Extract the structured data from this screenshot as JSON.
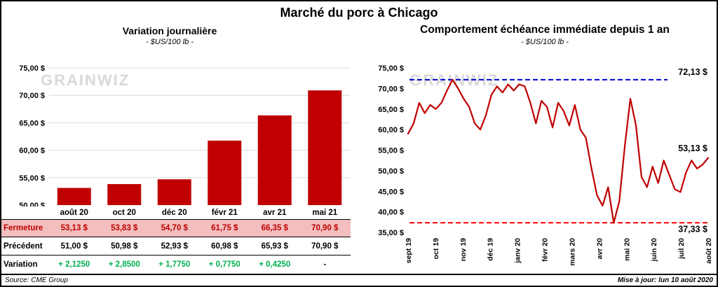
{
  "page_title": "Marché du porc à Chicago",
  "watermark": "GRAINWIZ",
  "footer": {
    "source": "Source: CME Group",
    "updated": "Mise à jour: lun 10 août 2020"
  },
  "colors": {
    "accent_red": "#C00000",
    "max_blue": "#0000CC",
    "min_red": "#FF0000",
    "variation_green": "#00B050",
    "fermeture_row_bg": "#F2BEBE",
    "grid_gray": "#D9D9D9",
    "watermark_gray": "#D9D9D9"
  },
  "table": {
    "columns": [
      "août 20",
      "oct 20",
      "déc 20",
      "févr 21",
      "avr 21",
      "mai 21"
    ],
    "rows": [
      {
        "label": "Fermeture",
        "style": "fermeture",
        "values": [
          "53,13 $",
          "53,83 $",
          "54,70 $",
          "61,75 $",
          "66,35 $",
          "70,90 $"
        ]
      },
      {
        "label": "Précédent",
        "style": "precedent",
        "values": [
          "51,00 $",
          "50,98 $",
          "52,93 $",
          "60,98 $",
          "65,93 $",
          "70,90 $"
        ]
      },
      {
        "label": "Variation",
        "style": "variation",
        "values": [
          "+ 2,1250",
          "+ 2,8500",
          "+ 1,7750",
          "+ 0,7750",
          "+ 0,4250",
          "-"
        ]
      }
    ]
  },
  "chart_data": [
    {
      "id": "daily-variation-bar",
      "type": "bar",
      "title": "Variation journalière",
      "subtitle": "- $US/100 lb -",
      "categories": [
        "août 20",
        "oct 20",
        "déc 20",
        "févr 21",
        "avr 21",
        "mai 21"
      ],
      "values": [
        53.13,
        53.83,
        54.7,
        61.75,
        66.35,
        70.9
      ],
      "ylim": [
        50,
        75
      ],
      "ytick_step": 5,
      "ytick_labels": [
        "50,00 $",
        "55,00 $",
        "60,00 $",
        "65,00 $",
        "70,00 $",
        "75,00 $"
      ],
      "grid": true,
      "color": "#C00000"
    },
    {
      "id": "immediate-contract-line",
      "type": "line",
      "title": "Comportement échéance immédiate depuis 1 an",
      "subtitle": "- $US/100 lb -",
      "x_labels": [
        "sept 19",
        "oct 19",
        "nov 19",
        "déc 19",
        "janv 20",
        "févr 20",
        "mars 20",
        "avr 20",
        "mai 20",
        "juin 20",
        "juil 20",
        "août 20"
      ],
      "values": [
        59.0,
        61.5,
        66.5,
        64.0,
        66.0,
        65.0,
        66.5,
        69.5,
        72.13,
        70.0,
        67.5,
        65.5,
        61.5,
        60.0,
        63.5,
        68.5,
        70.5,
        69.0,
        71.0,
        69.5,
        71.0,
        70.5,
        66.5,
        61.5,
        67.0,
        65.5,
        60.5,
        66.5,
        64.5,
        61.0,
        66.0,
        60.0,
        58.0,
        50.5,
        44.0,
        41.5,
        46.0,
        37.33,
        42.5,
        56.0,
        67.5,
        61.0,
        48.5,
        46.0,
        51.0,
        47.0,
        52.5,
        49.0,
        45.5,
        44.8,
        49.5,
        52.5,
        50.5,
        51.5,
        53.13
      ],
      "ylim": [
        35,
        75
      ],
      "ytick_step": 5,
      "ytick_labels": [
        "35,00 $",
        "40,00 $",
        "45,00 $",
        "50,00 $",
        "55,00 $",
        "60,00 $",
        "65,00 $",
        "70,00 $",
        "75,00 $"
      ],
      "grid": false,
      "color": "#C00000",
      "max_line": {
        "value": 72.13,
        "label": "72,13 $",
        "color": "#0000CC"
      },
      "min_line": {
        "value": 37.33,
        "label": "37,33 $",
        "color": "#FF0000"
      },
      "last_label": {
        "value": 53.13,
        "label": "53,13 $",
        "color": "#000000"
      }
    }
  ]
}
